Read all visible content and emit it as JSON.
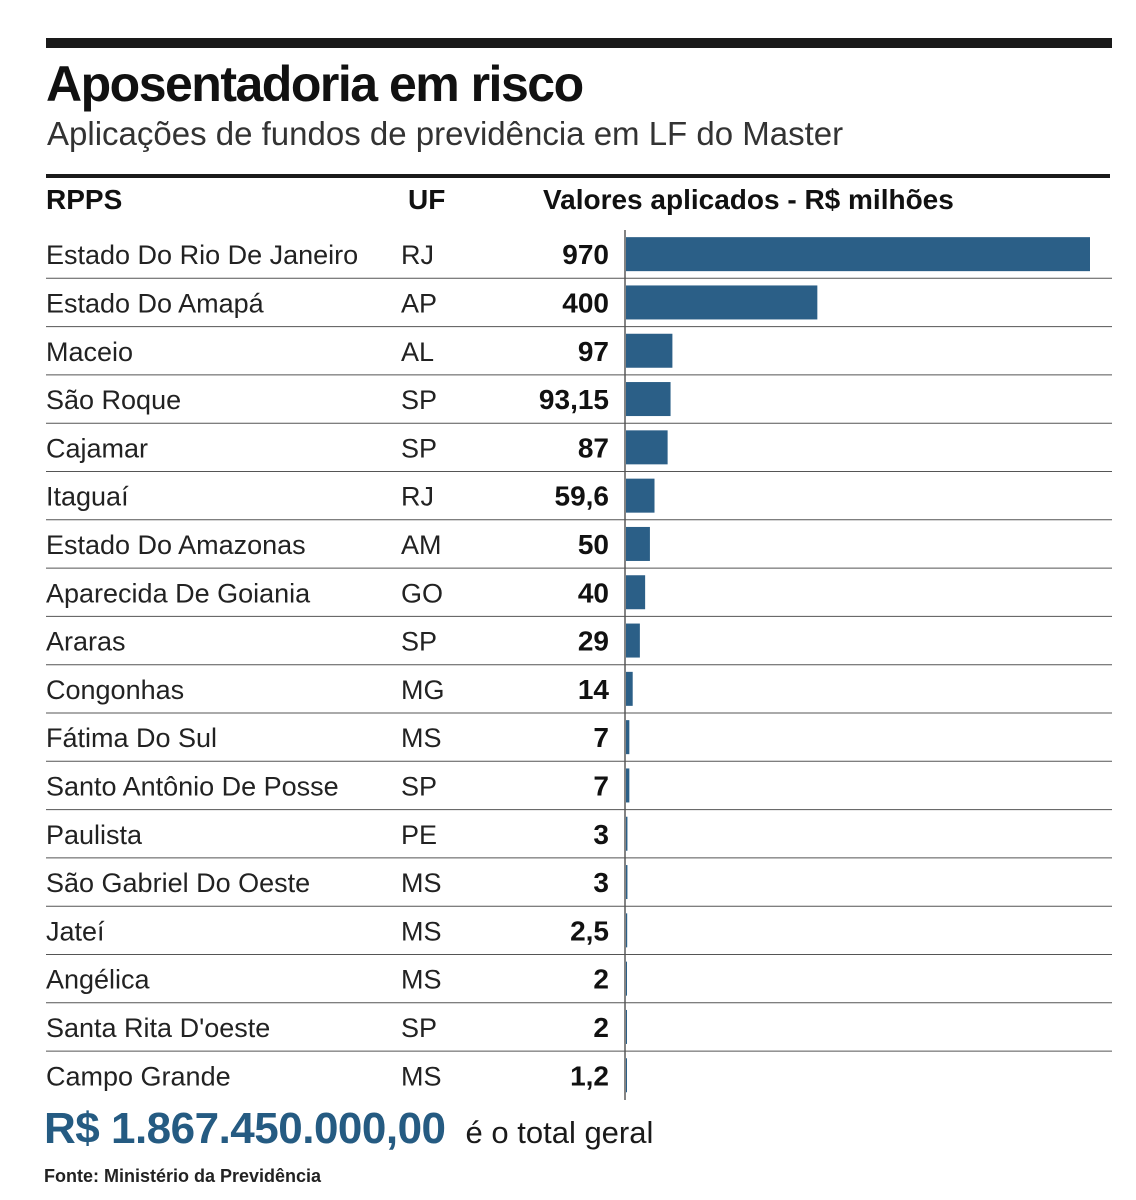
{
  "header": {
    "title": "Aposentadoria em risco",
    "subtitle": "Aplicações de fundos de previdência em LF do Master"
  },
  "columns": {
    "rpps": "RPPS",
    "uf": "UF",
    "values": "Valores aplicados - R$ milhões"
  },
  "chart_data": {
    "type": "bar",
    "orientation": "horizontal",
    "title": "Aposentadoria em risco",
    "subtitle": "Aplicações de fundos de previdência em LF do Master",
    "xlabel": "",
    "ylabel": "",
    "unit": "R$ milhões",
    "grid": false,
    "legend": "none",
    "bar_color": "#2b5f87",
    "xlim": [
      0,
      970
    ],
    "categories": [
      "Estado Do Rio De Janeiro",
      "Estado Do Amapá",
      "Maceio",
      "São Roque",
      "Cajamar",
      "Itaguaí",
      "Estado Do Amazonas",
      "Aparecida De Goiania",
      "Araras",
      "Congonhas",
      "Fátima Do Sul",
      "Santo Antônio De Posse",
      "Paulista",
      "São Gabriel Do Oeste",
      "Jateí",
      "Angélica",
      "Santa Rita D'oeste",
      "Campo Grande"
    ],
    "uf": [
      "RJ",
      "AP",
      "AL",
      "SP",
      "SP",
      "RJ",
      "AM",
      "GO",
      "SP",
      "MG",
      "MS",
      "SP",
      "PE",
      "MS",
      "MS",
      "MS",
      "SP",
      "MS"
    ],
    "values": [
      970,
      400,
      97,
      93.15,
      87,
      59.6,
      50,
      40,
      29,
      14,
      7,
      7,
      3,
      3,
      2.5,
      2,
      2,
      1.2
    ],
    "value_labels": [
      "970",
      "400",
      "97",
      "93,15",
      "87",
      "59,6",
      "50",
      "40",
      "29",
      "14",
      "7",
      "7",
      "3",
      "3",
      "2,5",
      "2",
      "2",
      "1,2"
    ]
  },
  "total": {
    "value": "R$ 1.867.450.000,00",
    "suffix": "é o total geral"
  },
  "source": "Fonte: Ministério da Previdência"
}
